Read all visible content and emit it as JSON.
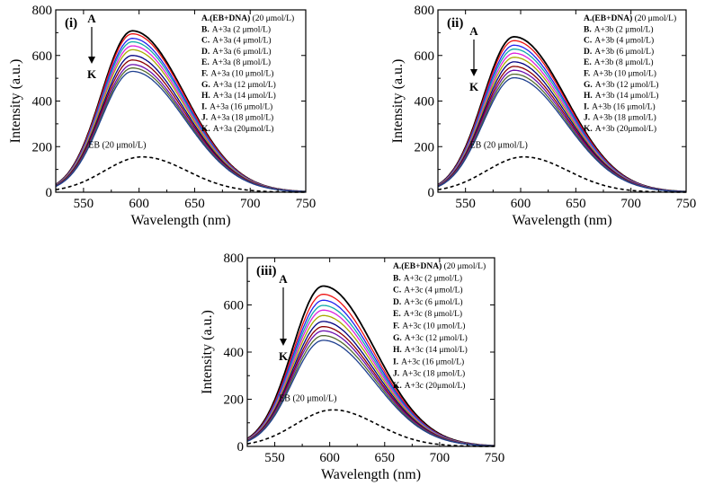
{
  "chart_data": [
    {
      "type": "line",
      "panel_label": "(i)",
      "xlabel": "Wavelength (nm)",
      "ylabel": "Intensity (a.u.)",
      "xlim": [
        525,
        750
      ],
      "ylim": [
        0,
        800
      ],
      "xticks": [
        550,
        600,
        650,
        700,
        750
      ],
      "yticks": [
        0,
        200,
        400,
        600,
        800
      ],
      "peak_x": 594,
      "arrow": {
        "from": "A",
        "to": "K"
      },
      "eb_label": "EB (20 μmol/L)",
      "eb_peak": {
        "x": 603,
        "y": 155
      },
      "legend_position": "top-right",
      "series": [
        {
          "key": "A.",
          "rest": "(EB+DNA) (20 μmol/L)",
          "bold": true,
          "peak": 708,
          "color": "#000000"
        },
        {
          "key": "B.",
          "rest": "A+3a (2 μmol/L)",
          "bold": false,
          "peak": 695,
          "color": "#ee1111"
        },
        {
          "key": "C.",
          "rest": "A+3a (4 μmol/L)",
          "bold": false,
          "peak": 675,
          "color": "#2222ee"
        },
        {
          "key": "D.",
          "rest": "A+3a (6 μmol/L)",
          "bold": false,
          "peak": 660,
          "color": "#11aaaa"
        },
        {
          "key": "E.",
          "rest": "A+3a (8 μmol/L)",
          "bold": false,
          "peak": 642,
          "color": "#dd22dd"
        },
        {
          "key": "F.",
          "rest": "A+3a (10 μmol/L)",
          "bold": false,
          "peak": 625,
          "color": "#aaaa00"
        },
        {
          "key": "G.",
          "rest": "A+3a (12 μmol/L)",
          "bold": false,
          "peak": 600,
          "color": "#000080"
        },
        {
          "key": "H.",
          "rest": "A+3a (14 μmol/L)",
          "bold": false,
          "peak": 580,
          "color": "#8b0000"
        },
        {
          "key": "I.",
          "rest": "A+3a (16 μmol/L)",
          "bold": false,
          "peak": 560,
          "color": "#6a0dad"
        },
        {
          "key": "J.",
          "rest": "A+3a (18 μmol/L)",
          "bold": false,
          "peak": 545,
          "color": "#556b2f"
        },
        {
          "key": "K.",
          "rest": "A+3a (20μmol/L)",
          "bold": false,
          "peak": 530,
          "color": "#1e3f8f"
        }
      ]
    },
    {
      "type": "line",
      "panel_label": "(ii)",
      "xlabel": "Wavelength (nm)",
      "ylabel": "Intensity (a.u.)",
      "xlim": [
        525,
        750
      ],
      "ylim": [
        0,
        800
      ],
      "xticks": [
        550,
        600,
        650,
        700,
        750
      ],
      "yticks": [
        0,
        200,
        400,
        600,
        800
      ],
      "peak_x": 594,
      "arrow": {
        "from": "A",
        "to": "K"
      },
      "eb_label": "EB (20 μmol/L)",
      "eb_peak": {
        "x": 603,
        "y": 155
      },
      "legend_position": "top-right",
      "series": [
        {
          "key": "A.",
          "rest": "(EB+DNA) (20 μmol/L)",
          "bold": true,
          "peak": 682,
          "color": "#000000"
        },
        {
          "key": "B.",
          "rest": "A+3b (2 μmol/L)",
          "bold": false,
          "peak": 665,
          "color": "#ee1111"
        },
        {
          "key": "C.",
          "rest": "A+3b (4 μmol/L)",
          "bold": false,
          "peak": 645,
          "color": "#2222ee"
        },
        {
          "key": "D.",
          "rest": "A+3b (6 μmol/L)",
          "bold": false,
          "peak": 628,
          "color": "#11aaaa"
        },
        {
          "key": "E.",
          "rest": "A+3b (8 μmol/L)",
          "bold": false,
          "peak": 610,
          "color": "#dd22dd"
        },
        {
          "key": "F.",
          "rest": "A+3b (10 μmol/L)",
          "bold": false,
          "peak": 592,
          "color": "#aaaa00"
        },
        {
          "key": "G.",
          "rest": "A+3b (12 μmol/L)",
          "bold": false,
          "peak": 572,
          "color": "#000080"
        },
        {
          "key": "H.",
          "rest": "A+3b (14 μmol/L)",
          "bold": false,
          "peak": 552,
          "color": "#8b0000"
        },
        {
          "key": "I.",
          "rest": "A+3b (16 μmol/L)",
          "bold": false,
          "peak": 535,
          "color": "#6a0dad"
        },
        {
          "key": "J.",
          "rest": "A+3b (18 μmol/L)",
          "bold": false,
          "peak": 518,
          "color": "#556b2f"
        },
        {
          "key": "K.",
          "rest": "A+3b (20μmol/L)",
          "bold": false,
          "peak": 502,
          "color": "#1e3f8f"
        }
      ]
    },
    {
      "type": "line",
      "panel_label": "(iii)",
      "xlabel": "Wavelength (nm)",
      "ylabel": "Intensity (a.u.)",
      "xlim": [
        525,
        750
      ],
      "ylim": [
        0,
        800
      ],
      "xticks": [
        550,
        600,
        650,
        700,
        750
      ],
      "yticks": [
        0,
        200,
        400,
        600,
        800
      ],
      "peak_x": 594,
      "arrow": {
        "from": "A",
        "to": "K"
      },
      "eb_label": "EB (20 μmol/L)",
      "eb_peak": {
        "x": 603,
        "y": 155
      },
      "legend_position": "top-right",
      "series": [
        {
          "key": "A.",
          "rest": "(EB+DNA) (20 μmol/L)",
          "bold": true,
          "peak": 680,
          "color": "#000000"
        },
        {
          "key": "B.",
          "rest": "A+3c (2 μmol/L)",
          "bold": false,
          "peak": 645,
          "color": "#ee1111"
        },
        {
          "key": "C.",
          "rest": "A+3c (4 μmol/L)",
          "bold": false,
          "peak": 620,
          "color": "#2222ee"
        },
        {
          "key": "D.",
          "rest": "A+3c (6 μmol/L)",
          "bold": false,
          "peak": 598,
          "color": "#11aaaa"
        },
        {
          "key": "E.",
          "rest": "A+3c (8 μmol/L)",
          "bold": false,
          "peak": 578,
          "color": "#dd22dd"
        },
        {
          "key": "F.",
          "rest": "A+3c (10 μmol/L)",
          "bold": false,
          "peak": 555,
          "color": "#aaaa00"
        },
        {
          "key": "G.",
          "rest": "A+3c (12 μmol/L)",
          "bold": false,
          "peak": 530,
          "color": "#000080"
        },
        {
          "key": "H.",
          "rest": "A+3c (14 μmol/L)",
          "bold": false,
          "peak": 508,
          "color": "#8b0000"
        },
        {
          "key": "I.",
          "rest": "A+3c (16 μmol/L)",
          "bold": false,
          "peak": 490,
          "color": "#6a0dad"
        },
        {
          "key": "J.",
          "rest": "A+3c (18 μmol/L)",
          "bold": false,
          "peak": 470,
          "color": "#556b2f"
        },
        {
          "key": "K.",
          "rest": "A+3c (20μmol/L)",
          "bold": false,
          "peak": 450,
          "color": "#1e3f8f"
        }
      ]
    }
  ]
}
